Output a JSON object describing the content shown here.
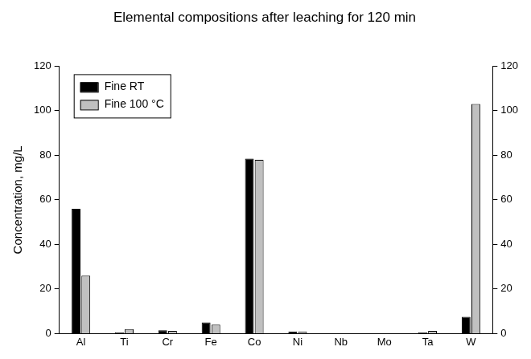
{
  "chart_data": {
    "type": "bar",
    "title": "Elemental compositions after leaching for 120 min",
    "y_label": "Concentration, mg/L",
    "categories": [
      "Al",
      "Ti",
      "Cr",
      "Fe",
      "Co",
      "Ni",
      "Nb",
      "Mo",
      "Ta",
      "W"
    ],
    "series": [
      {
        "name": "Fine RT",
        "color": "#000000",
        "values": [
          56,
          0.5,
          1.5,
          5,
          78.5,
          1,
          0,
          0,
          0.5,
          7.5
        ]
      },
      {
        "name": "Fine 100 °C",
        "color": "#c0c0c0",
        "values": [
          26,
          2,
          1.2,
          4,
          78,
          1,
          0,
          0,
          1.2,
          103
        ]
      }
    ],
    "ylim": [
      0,
      120
    ],
    "yticks": [
      0,
      20,
      40,
      60,
      80,
      100,
      120
    ],
    "y2lim": [
      0,
      120
    ],
    "y2ticks": [
      0,
      20,
      40,
      60,
      80,
      100,
      120
    ],
    "grid": false,
    "legend": "upper left"
  }
}
